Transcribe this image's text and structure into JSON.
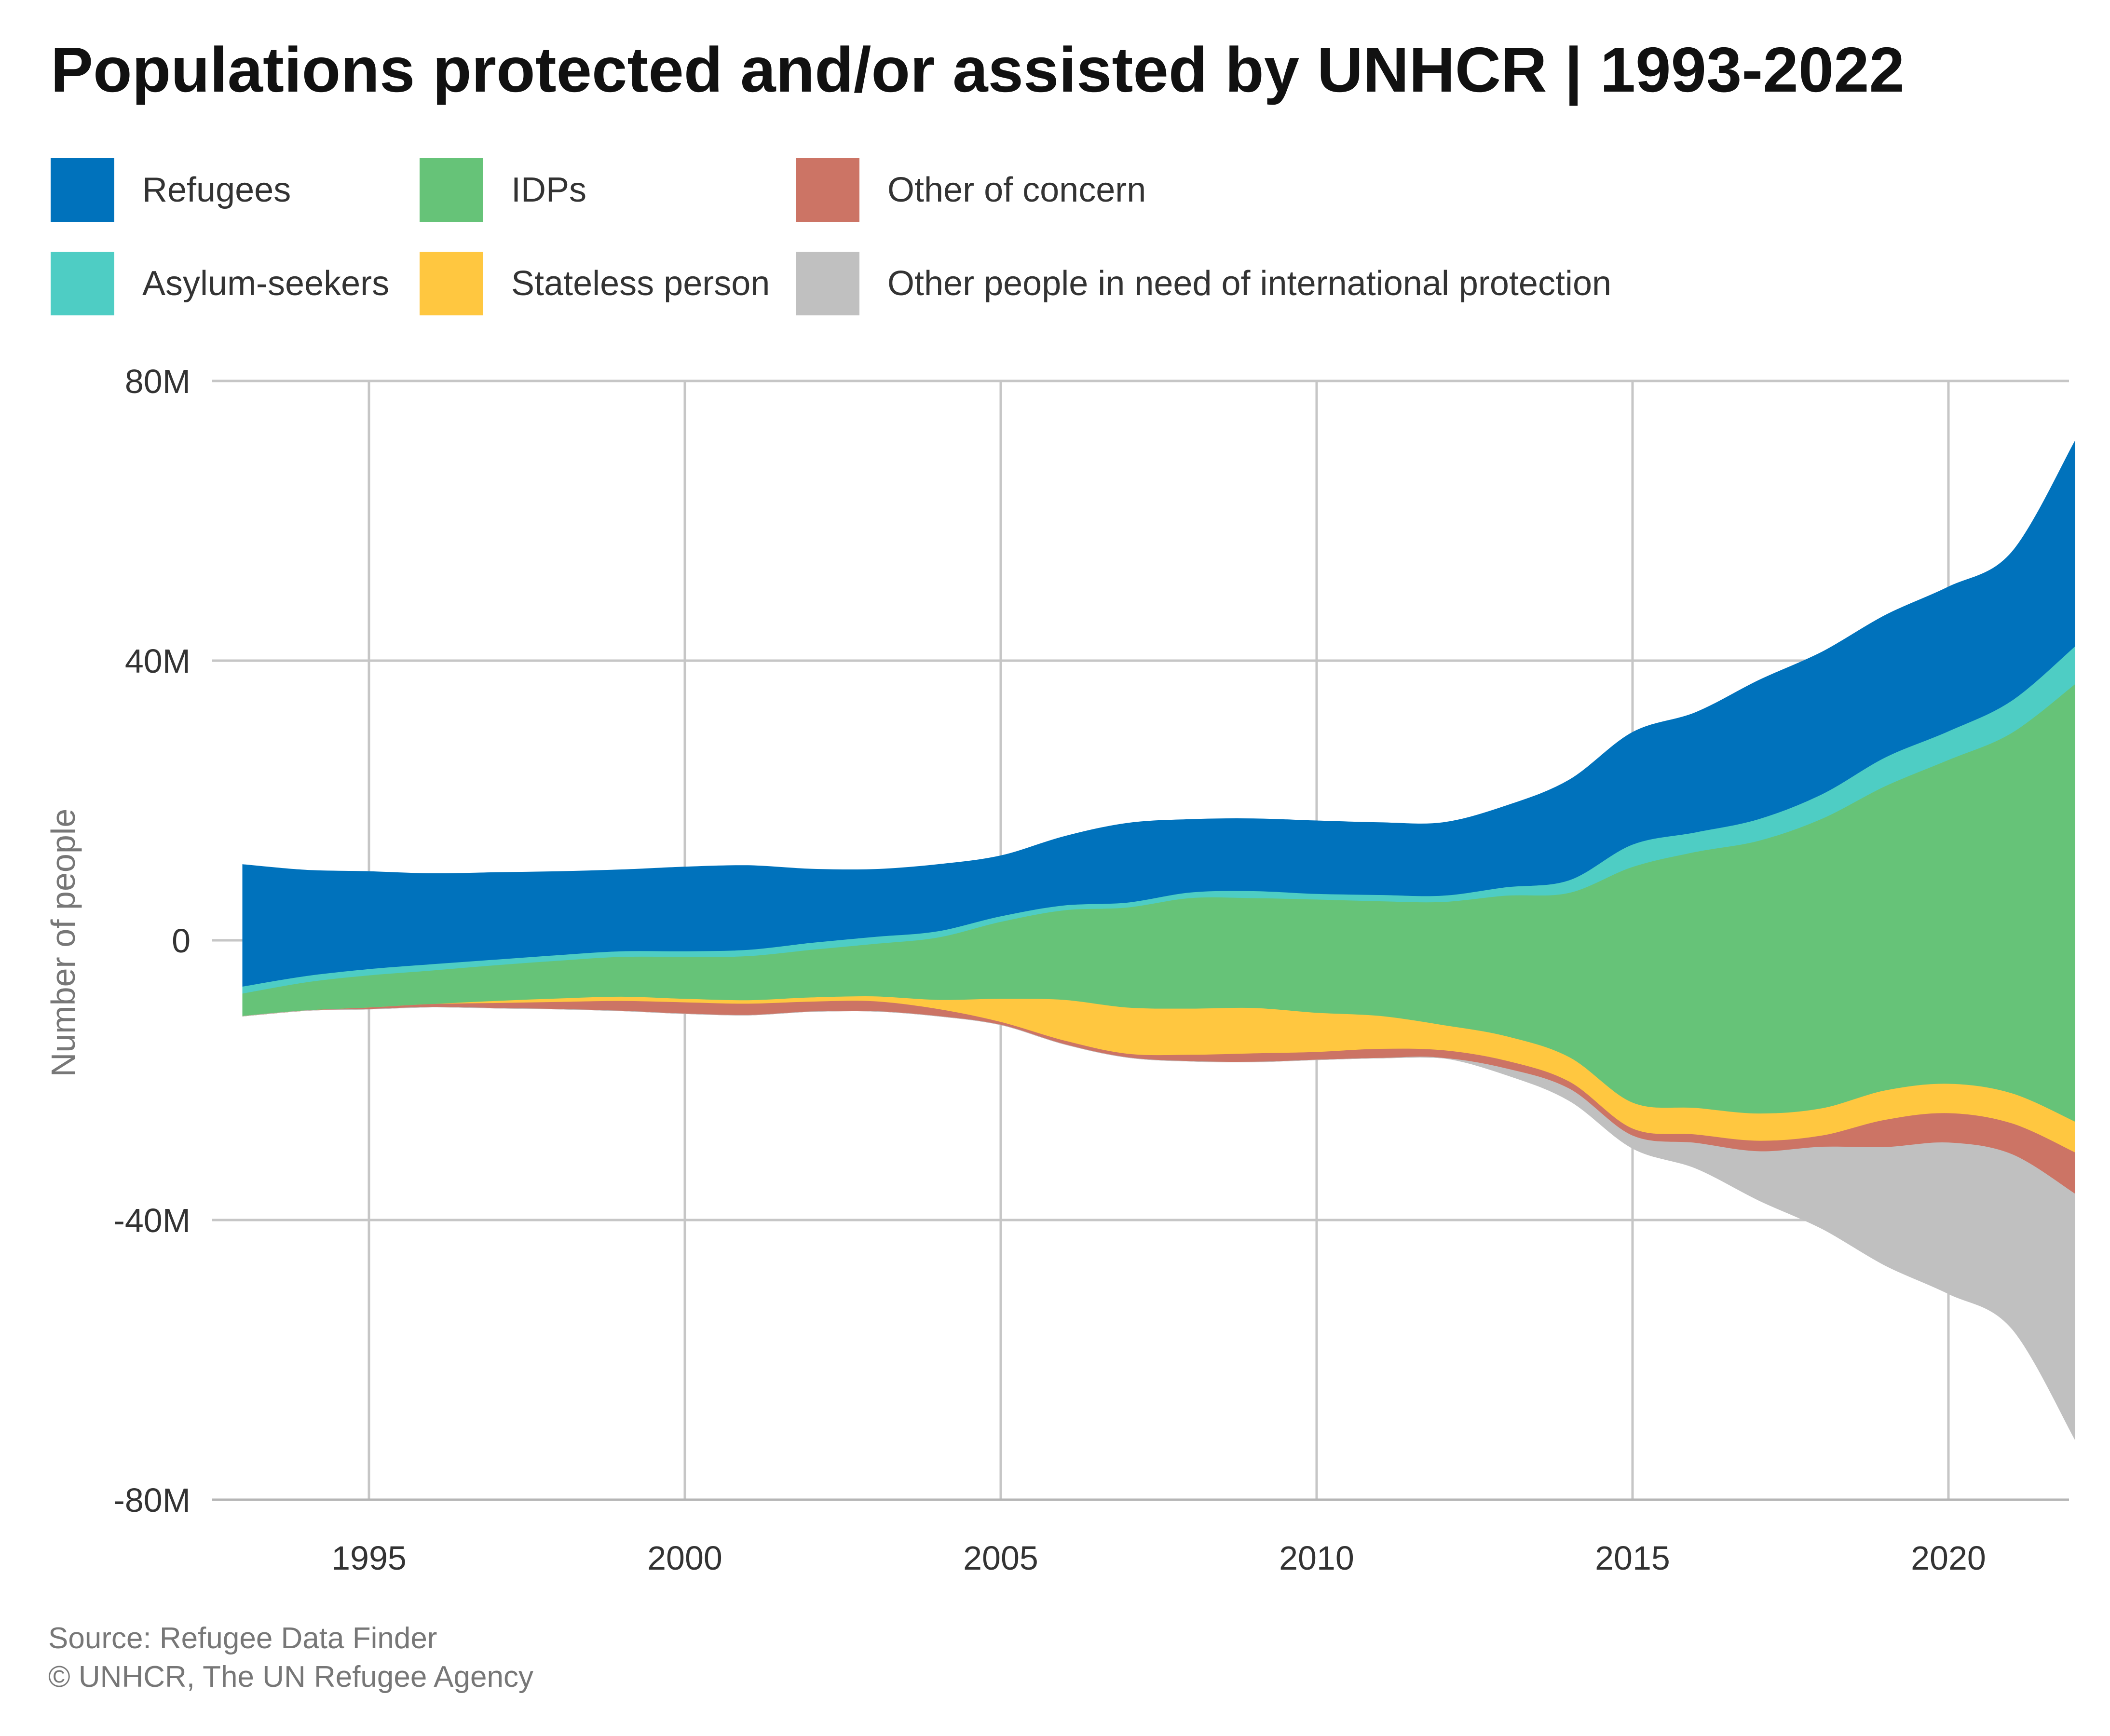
{
  "chart_data": {
    "type": "area",
    "subtype": "streamgraph",
    "title": "Populations protected and/or assisted by UNHCR | 1993-2022",
    "xlabel": "",
    "ylabel": "Number of people",
    "xlim": [
      1993,
      2022
    ],
    "ylim": [
      -80,
      80
    ],
    "y_unit": "millions",
    "x_ticks": [
      {
        "value": 1995,
        "label": "1995"
      },
      {
        "value": 2000,
        "label": "2000"
      },
      {
        "value": 2005,
        "label": "2005"
      },
      {
        "value": 2010,
        "label": "2010"
      },
      {
        "value": 2015,
        "label": "2015"
      },
      {
        "value": 2020,
        "label": "2020"
      }
    ],
    "y_ticks": [
      {
        "value": 80,
        "label": "80M"
      },
      {
        "value": 40,
        "label": "40M"
      },
      {
        "value": 0,
        "label": "0"
      },
      {
        "value": -40,
        "label": "-40M"
      },
      {
        "value": -80,
        "label": "-80M"
      }
    ],
    "grid": true,
    "legend_position": "top",
    "x": [
      1993,
      1994,
      1995,
      1996,
      1997,
      1998,
      1999,
      2000,
      2001,
      2002,
      2003,
      2004,
      2005,
      2006,
      2007,
      2008,
      2009,
      2010,
      2011,
      2012,
      2013,
      2014,
      2015,
      2016,
      2017,
      2018,
      2019,
      2020,
      2021,
      2022
    ],
    "series": [
      {
        "name": "Refugees",
        "color": "#0072BC",
        "values": [
          17.5,
          15.2,
          14.0,
          13.0,
          12.5,
          12.0,
          11.7,
          12.1,
          12.1,
          10.6,
          9.7,
          9.6,
          8.7,
          9.9,
          11.4,
          10.5,
          10.4,
          10.5,
          10.4,
          10.5,
          11.7,
          14.4,
          16.1,
          17.2,
          19.9,
          20.4,
          20.4,
          20.7,
          21.3,
          29.4
        ]
      },
      {
        "name": "Asylum-seekers",
        "color": "#4ECDC4",
        "values": [
          1.0,
          0.9,
          0.9,
          0.9,
          0.8,
          0.8,
          0.8,
          0.8,
          0.9,
          1.0,
          1.0,
          0.9,
          0.8,
          0.7,
          0.7,
          0.8,
          1.0,
          0.8,
          0.9,
          0.9,
          1.2,
          1.8,
          3.2,
          2.8,
          3.1,
          3.5,
          4.1,
          4.1,
          4.6,
          5.4
        ]
      },
      {
        "name": "IDPs",
        "color": "#66C378",
        "values": [
          3.2,
          4.0,
          4.6,
          4.8,
          5.1,
          5.4,
          5.7,
          6.0,
          6.3,
          6.8,
          7.5,
          8.9,
          11.0,
          12.8,
          14.3,
          15.8,
          15.7,
          16.2,
          16.4,
          17.6,
          20.1,
          23.5,
          33.7,
          36.6,
          39.0,
          41.4,
          43.5,
          46.3,
          51.5,
          62.5
        ]
      },
      {
        "name": "Stateless person",
        "color": "#FFC740",
        "values": [
          0.0,
          0.0,
          0.0,
          0.0,
          0.3,
          0.5,
          0.6,
          0.5,
          0.5,
          0.6,
          0.7,
          1.3,
          3.3,
          5.8,
          6.6,
          6.6,
          6.5,
          5.6,
          4.7,
          3.6,
          3.5,
          3.5,
          3.7,
          3.8,
          3.9,
          3.9,
          4.2,
          4.2,
          4.3,
          4.4
        ]
      },
      {
        "name": "Other of concern",
        "color": "#CC7465",
        "values": [
          0.0,
          0.0,
          0.2,
          0.4,
          0.7,
          1.0,
          1.4,
          1.6,
          1.6,
          1.4,
          1.4,
          1.0,
          0.4,
          0.5,
          0.5,
          0.9,
          1.2,
          1.1,
          1.3,
          1.1,
          1.1,
          1.0,
          1.0,
          1.2,
          1.5,
          1.6,
          3.9,
          4.2,
          4.4,
          5.9
        ]
      },
      {
        "name": "Other people in need of international protection",
        "color": "#C0C0C0",
        "values": [
          0.0,
          0.0,
          0.0,
          0.0,
          0.0,
          0.0,
          0.0,
          0.0,
          0.0,
          0.0,
          0.0,
          0.0,
          0.0,
          0.0,
          0.0,
          0.0,
          0.0,
          0.0,
          0.0,
          0.0,
          0.9,
          1.7,
          1.8,
          3.6,
          7.0,
          11.7,
          16.9,
          21.6,
          24.9,
          35.1
        ]
      }
    ],
    "source_lines": [
      "Source: Refugee Data Finder",
      "© UNHCR, The UN Refugee Agency"
    ]
  }
}
